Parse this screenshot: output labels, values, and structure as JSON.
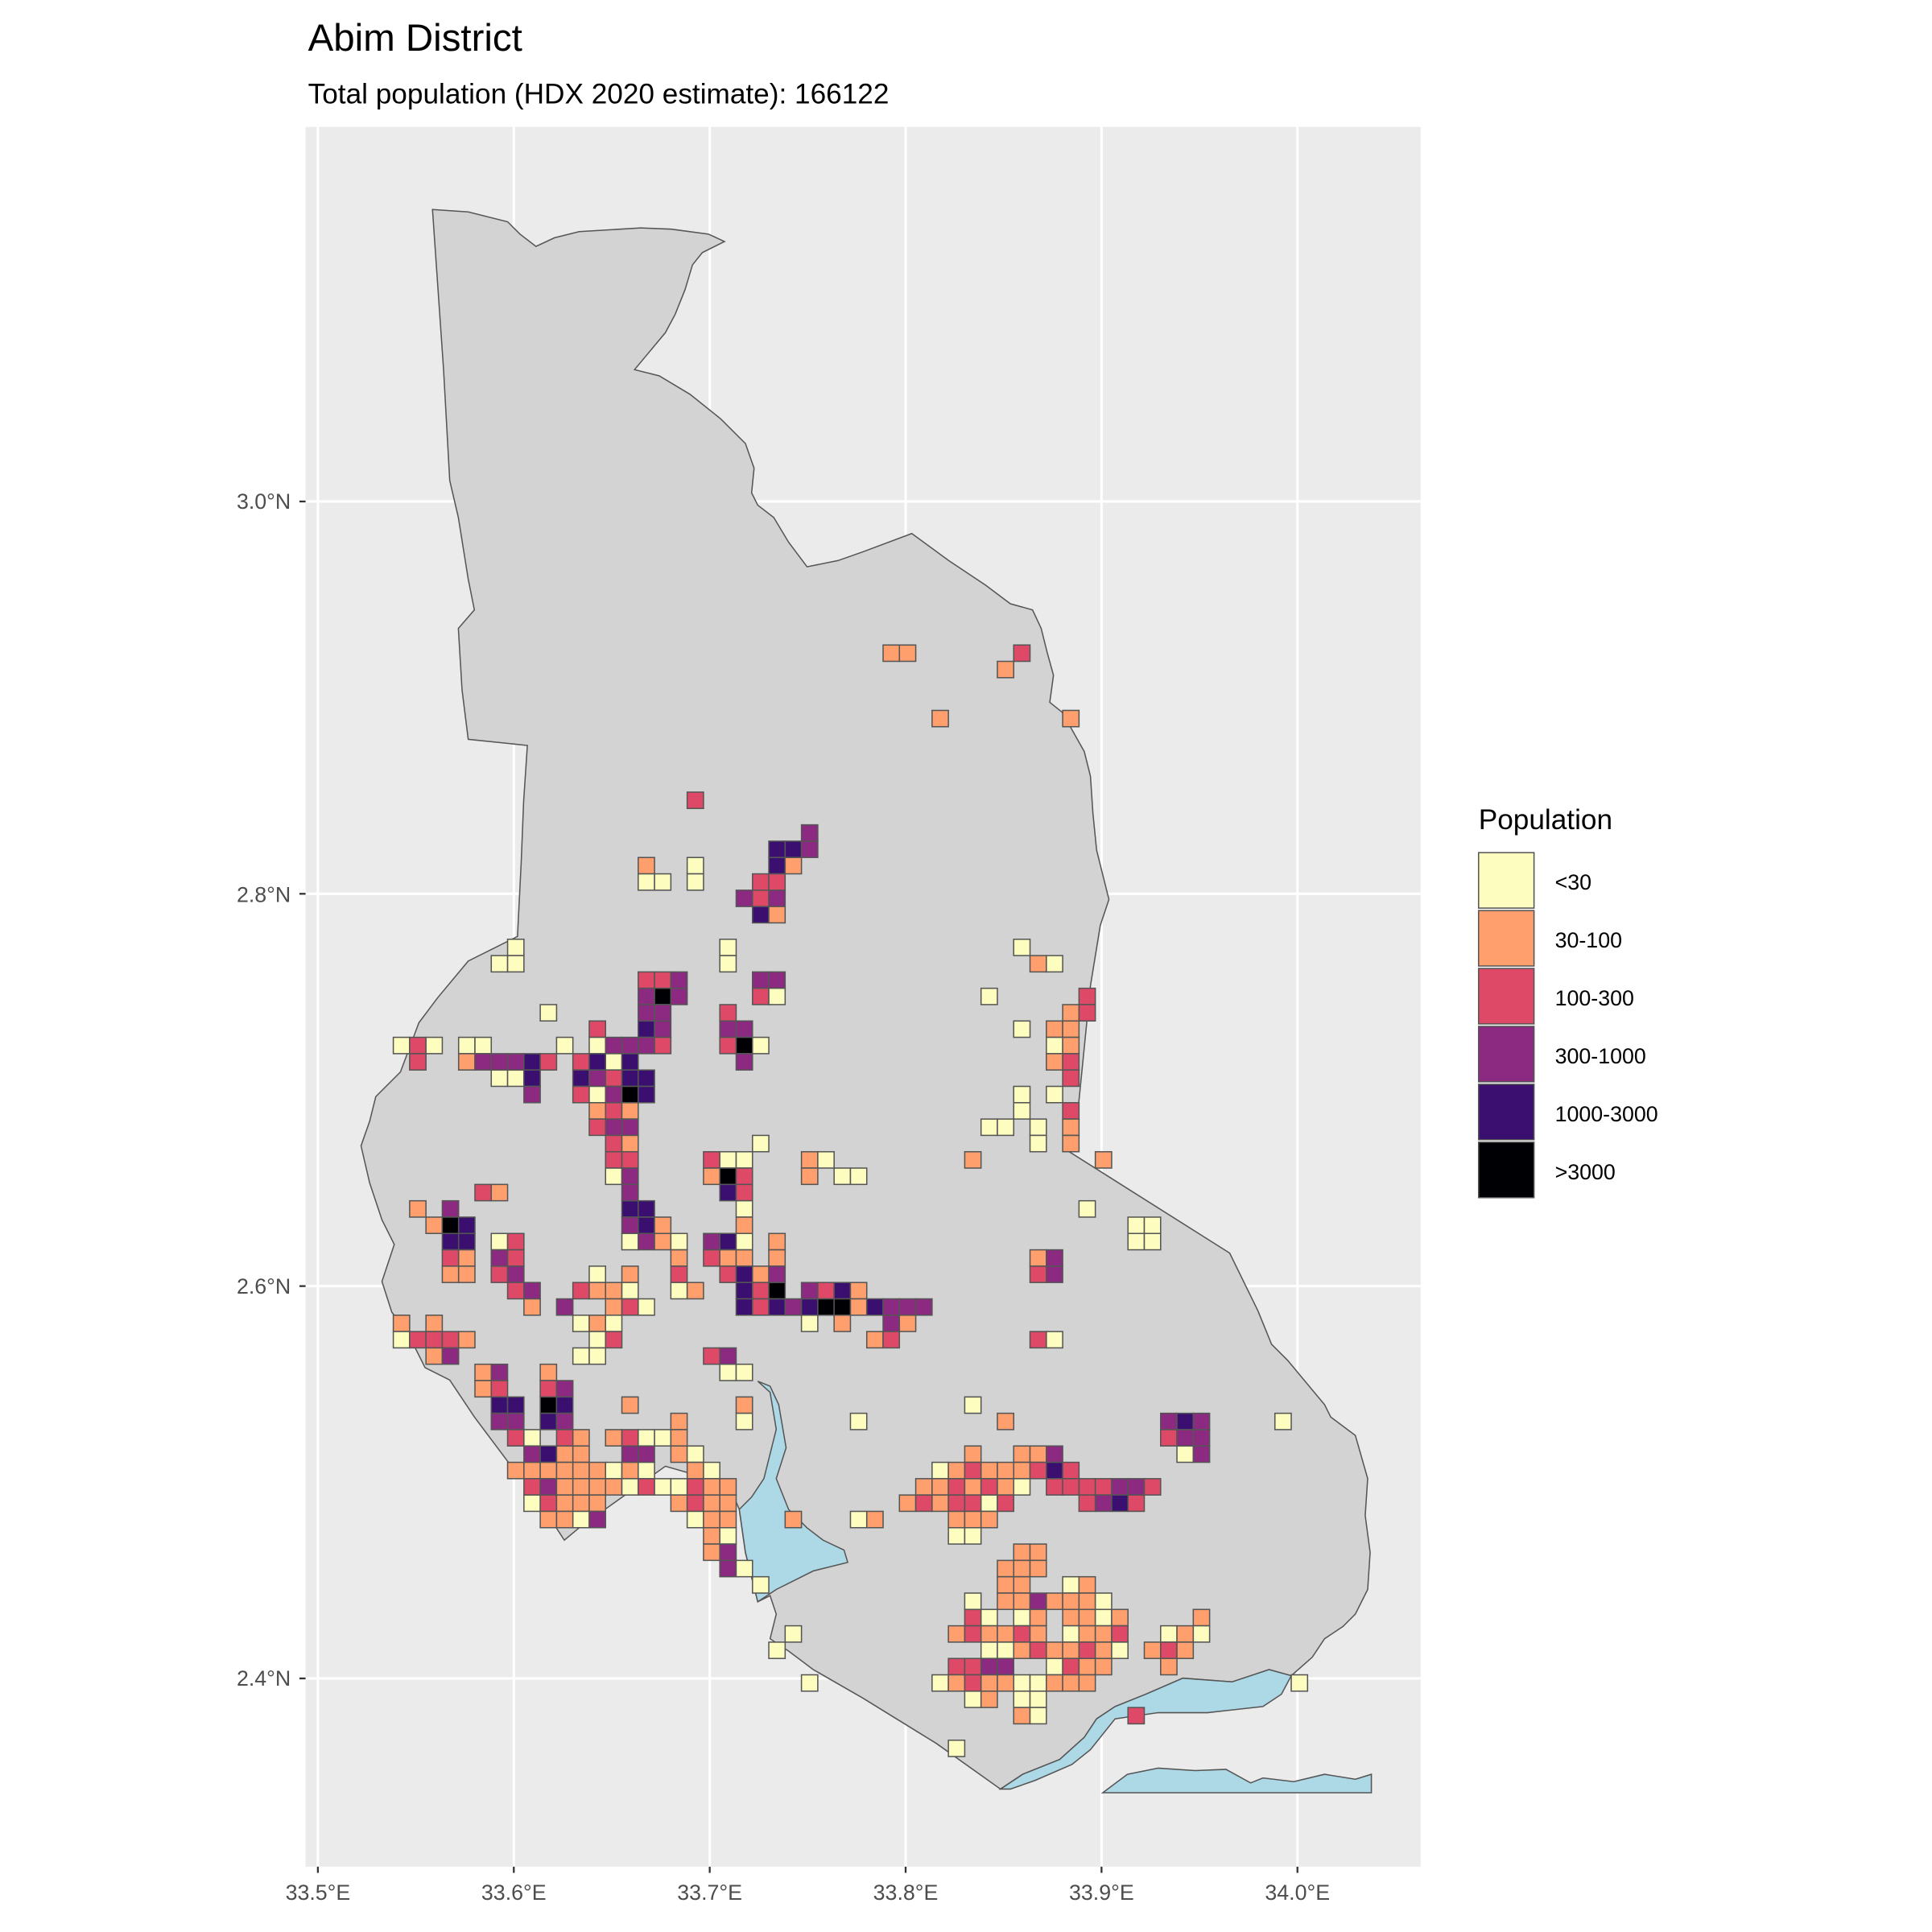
{
  "title": "Abim District",
  "subtitle": "Total population (HDX 2020 estimate): 166122",
  "chart_data": {
    "type": "heatmap",
    "map_type": "choropleth grid",
    "title": "Abim District",
    "subtitle": "Total population (HDX 2020 estimate): 166122",
    "xlim": [
      33.494,
      34.063
    ],
    "ylim": [
      2.33,
      3.17
    ],
    "x_ticks": [
      "33.5°E",
      "33.6°E",
      "33.7°E",
      "33.8°E",
      "33.9°E",
      "34.0°E"
    ],
    "x_tick_values": [
      33.5,
      33.6,
      33.7,
      33.8,
      33.9,
      34.0
    ],
    "y_ticks": [
      "2.4°N",
      "2.6°N",
      "2.8°N",
      "3.0°N"
    ],
    "y_tick_values": [
      2.4,
      2.6,
      2.8,
      3.0
    ],
    "grid": true,
    "legend": {
      "title": "Population",
      "placement": "right",
      "classes": [
        {
          "label": "<30",
          "color": "#fcfdbf"
        },
        {
          "label": "30-100",
          "color": "#fe9f6d"
        },
        {
          "label": "100-300",
          "color": "#de4968"
        },
        {
          "label": "300-1000",
          "color": "#8c2981"
        },
        {
          "label": "1000-3000",
          "color": "#3b0f70"
        },
        {
          "label": ">3000",
          "color": "#000004"
        }
      ]
    },
    "colors": {
      "panel": "#ebebeb",
      "district": "#d3d3d3",
      "water": "#add8e6",
      "outline": "#555555"
    },
    "raster": {
      "lon_min": 33.5385,
      "lat_max": 2.9435,
      "cell_deg": 0.0083333,
      "note_format": "row index -> 'col:class' pairs, class 1..6 = legend class",
      "rows": {
        "2": "30:2 31:2 38:3",
        "3": "37:2",
        "6": "33:2 41:2",
        "11": "18:3",
        "13": "25:4",
        "14": "23:5 24:5 25:4",
        "15": "15:2 18:1 23:5 24:2",
        "16": "15:1 16:1 18:1 22:3 23:3",
        "17": "21:4 22:3 23:4",
        "18": "22:5 23:2",
        "20": "7:1 20:1 38:1",
        "21": "6:1 7:1 20:1 39:2 40:1",
        "22": "15:3 16:3 17:4 22:4 23:4",
        "23": "15:4 16:6 17:4 22:3 23:1 36:1 42:3",
        "24": "9:1 15:4 16:4 20:3 41:2 42:3",
        "25": "12:3 15:5 16:4 20:4 21:4 38:1 40:2 41:2",
        "26": "0:1 1:3 2:1 4:1 5:1 10:1 12:1 13:4 14:4 15:4 16:3 20:3 21:6 22:1 40:1 41:2",
        "27": "1:3 4:2 5:4 6:4 7:4 8:5 9:3 11:3 12:5 13:1 14:5 21:4 40:2 41:3",
        "28": "6:1 7:1 8:5 11:5 12:4 13:3 14:5 15:5 41:3",
        "29": "8:4 11:3 12:1 13:4 14:6 15:5 38:1 40:1",
        "30": "12:2 13:3 14:2 38:1 41:3",
        "31": "12:3 13:4 14:4 36:1 37:1 39:1 41:2",
        "32": "13:3 14:2 22:1 39:1 41:2",
        "33": "13:3 14:3 19:3 20:1 21:1 25:2 26:1 35:2 43:2",
        "34": "13:1 14:4 19:2 20:6 21:3 25:2 27:1 28:1",
        "35": "5:3 6:2 14:4 20:5 21:3",
        "36": "1:2 3:4 14:5 15:5 21:1 42:1",
        "37": "2:2 3:6 4:5 14:4 15:5 16:2 21:2 45:1 46:1",
        "38": "3:5 4:5 6:1 7:3 14:1 15:4 16:2 17:1 19:4 20:5 21:1 23:2 45:1 46:1",
        "39": "3:3 4:2 6:4 7:3 17:2 19:3 20:2 21:2 23:2 39:2 40:4",
        "40": "3:2 4:2 6:3 7:4 12:1 14:2 17:3 20:3 21:5 22:2 23:4 39:3 40:4",
        "41": "7:3 8:4 11:3 12:2 13:2 14:1 17:1 18:2 21:5 22:3 23:6 25:4 26:3 27:5 28:2",
        "42": "8:2 10:4 13:2 14:3 15:1 21:5 22:3 23:5 24:4 25:5 26:6 27:6 28:2 29:5 30:4 31:4 32:4",
        "43": "0:2 2:2 11:1 12:2 13:1 25:1 27:2 30:4 31:2",
        "44": "0:1 1:3 2:3 3:3 4:2 12:1 13:3 29:2 30:3 39:3 40:1",
        "45": "2:2 3:4 11:1 12:1 19:3 20:4",
        "46": "5:2 6:4 9:2 20:1 21:1",
        "47": "5:2 6:3 9:3 10:4",
        "48": "6:5 7:5 9:6 10:5 14:2 21:2 35:1",
        "49": "6:4 7:4 9:5 10:4 17:2 21:1 28:1 37:2 47:4 48:5 49:4 54:1",
        "50": "7:3 8:1 10:3 11:2 13:2 14:3 15:1 16:1 17:2 47:3 48:4 49:4",
        "51": "8:4 9:5 10:2 11:2 14:4 15:4 17:2 18:1 35:2 38:2 39:2 40:4 48:1 49:4",
        "52": "7:2 8:2 9:2 10:2 11:2 12:2 13:1 14:2 15:1 18:2 19:1 33:1 34:2 35:3 36:2 37:2 38:2 39:3 40:5 41:3",
        "53": "8:3 9:4 10:2 11:2 12:2 13:2 14:1 15:3 16:1 17:1 18:3 19:2 20:2 32:2 33:2 34:3 35:2 36:3 37:2 38:1 40:3 41:3 42:3 43:3 44:4 45:4 46:3",
        "54": "8:1 9:3 10:2 11:2 12:2 17:2 18:3 19:2 20:2 31:2 32:3 33:2 34:3 35:3 36:1 37:3 42:3 43:4 44:5 45:3",
        "55": "9:2 10:2 11:1 12:4 18:1 19:2 20:2 24:2 28:1 29:2 34:2 35:2 36:2",
        "56": "19:2 20:1 34:1 35:1",
        "57": "19:2 20:4 38:2 39:2",
        "58": "20:4 21:1 37:2 38:2 39:2",
        "59": "22:1 37:2 38:2 41:1 42:2",
        "60": "35:1 37:2 38:2 39:4 40:2 41:2 42:2 43:1",
        "61": "35:3 36:1 38:1 39:2 41:2 42:2 43:1 44:2 49:2",
        "62": "24:1 34:2 35:3 36:2 37:2 38:3 39:2 41:1 42:2 43:2 44:3 47:1 48:2 49:1",
        "63": "23:1 36:1 37:1 38:2 39:3 40:2 41:2 42:3 43:2 44:1 46:2 47:3 48:2",
        "64": "34:3 35:3 36:4 37:4 40:1 41:3 42:2 43:2 47:2",
        "65": "25:1 33:1 34:2 35:3 36:2 37:2 38:1 39:1 40:2 41:2 42:2 55:1",
        "66": "35:1 36:2 38:1 39:1",
        "67": "38:2 39:1 45:3",
        "69": "34:1"
      }
    }
  }
}
